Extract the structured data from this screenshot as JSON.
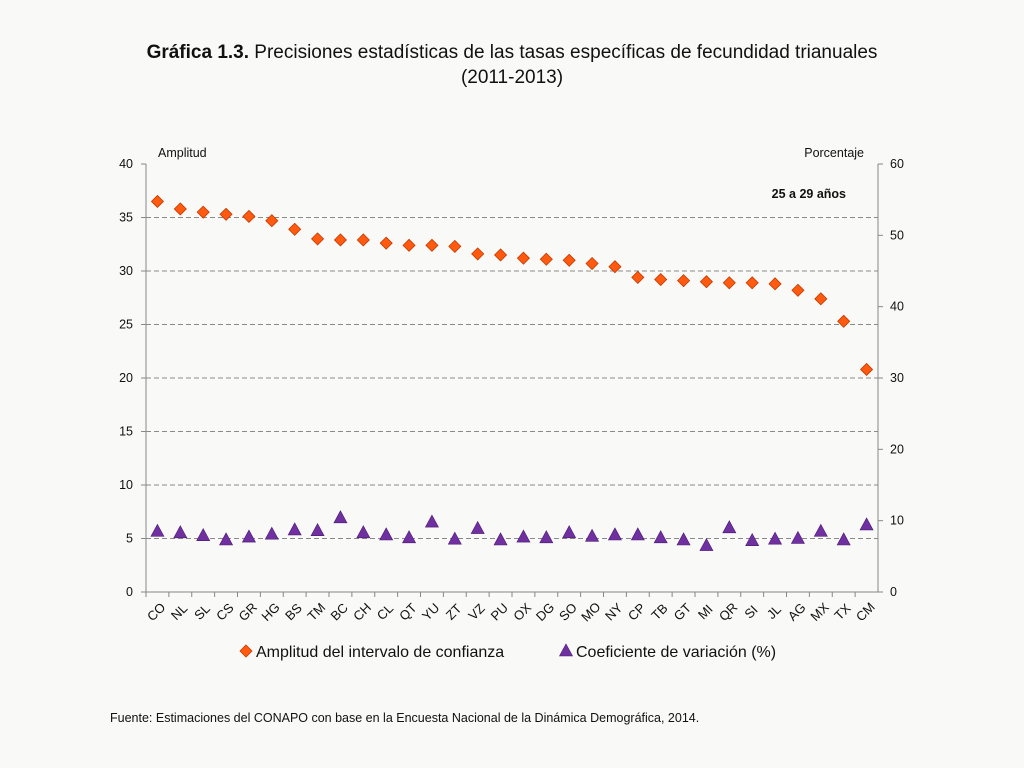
{
  "title": {
    "bold": "Gráfica 1.3.",
    "text": " Precisiones estadísticas de las tasas específicas de fecundidad trianuales",
    "line2": "(2011-2013)"
  },
  "source": "Fuente: Estimaciones del CONAPO con base en la Encuesta Nacional de la Dinámica Demográfica, 2014.",
  "chart_data": {
    "type": "scatter",
    "title": "Precisiones estadísticas de las tasas específicas de fecundidad trianuales (2011-2013)",
    "annotation": "25 a 29 años",
    "ylabel_left": "Amplitud",
    "ylabel_right": "Porcentaje",
    "ylim_left": [
      0,
      40
    ],
    "yticks_left": [
      0,
      5,
      10,
      15,
      20,
      25,
      30,
      35,
      40
    ],
    "ylim_right": [
      0,
      60
    ],
    "yticks_right": [
      0,
      10,
      20,
      30,
      40,
      50,
      60
    ],
    "grid": true,
    "legend_position": "bottom",
    "categories": [
      "CO",
      "NL",
      "SL",
      "CS",
      "GR",
      "HG",
      "BS",
      "TM",
      "BC",
      "CH",
      "CL",
      "QT",
      "YU",
      "ZT",
      "VZ",
      "PU",
      "OX",
      "DG",
      "SO",
      "MO",
      "NY",
      "CP",
      "TB",
      "GT",
      "MI",
      "QR",
      "SI",
      "JL",
      "AG",
      "MX",
      "TX",
      "CM"
    ],
    "series": [
      {
        "name": "Amplitud del intervalo de confianza",
        "axis": "left",
        "marker": "diamond",
        "color": "#ff5a0f",
        "values": [
          36.5,
          35.8,
          35.5,
          35.3,
          35.1,
          34.7,
          33.9,
          33.0,
          32.9,
          32.9,
          32.6,
          32.4,
          32.4,
          32.3,
          31.6,
          31.5,
          31.2,
          31.1,
          31.0,
          30.7,
          30.4,
          29.4,
          29.2,
          29.1,
          29.0,
          28.9,
          28.9,
          28.8,
          28.2,
          27.4,
          25.3,
          20.8
        ]
      },
      {
        "name": "Coeficiente de variación (%)",
        "axis": "right",
        "marker": "triangle",
        "color": "#7030a0",
        "values": [
          8.5,
          8.3,
          7.9,
          7.3,
          7.7,
          8.1,
          8.7,
          8.6,
          10.4,
          8.3,
          8.0,
          7.6,
          9.8,
          7.4,
          8.9,
          7.3,
          7.7,
          7.6,
          8.3,
          7.8,
          8.0,
          8.0,
          7.6,
          7.3,
          6.5,
          9.0,
          7.2,
          7.4,
          7.5,
          8.5,
          7.3,
          9.4
        ]
      }
    ]
  }
}
